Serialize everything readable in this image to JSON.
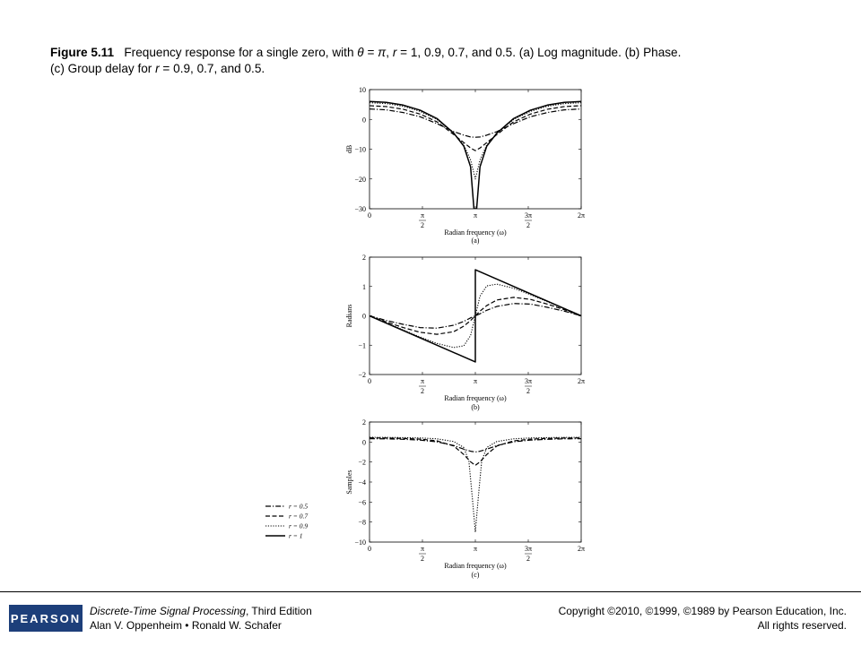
{
  "caption": {
    "figure_label": "Figure 5.11",
    "text_a": "Frequency response for a single zero, with ",
    "theta_sym": "θ",
    "text_b": " = ",
    "pi_sym": "π",
    "text_c": ", ",
    "r_sym": "r",
    "text_d": " = 1, 0.9, 0.7, and 0.5. (a) Log magnitude. (b) Phase.",
    "line2_a": "(c) Group delay for ",
    "line2_r": "r",
    "line2_b": " = 0.9, 0.7, and 0.5."
  },
  "footer": {
    "logo": "PEARSON",
    "book_title": "Discrete-Time Signal Processing",
    "book_edition": ", Third Edition",
    "authors": "Alan V. Oppenheim • Ronald W. Schafer",
    "copyright": "Copyright ©2010, ©1999, ©1989 by Pearson Education, Inc.",
    "rights": "All rights reserved."
  },
  "legend": {
    "entries": [
      {
        "label": "r = 0.5",
        "style": "dashdot"
      },
      {
        "label": "r = 0.7",
        "style": "dashed"
      },
      {
        "label": "r = 0.9",
        "style": "dotted"
      },
      {
        "label": "r = 1",
        "style": "solid"
      }
    ]
  },
  "chart_data": [
    {
      "type": "line",
      "sublabel": "(a)",
      "ylabel": "dB",
      "xlabel": "Radian frequency (ω)",
      "ylim": [
        -30,
        10
      ],
      "yticks": [
        "10",
        "0",
        "−10",
        "−20",
        "−30"
      ],
      "xticks": [
        {
          "num": "0",
          "den": ""
        },
        {
          "num": "π",
          "den": "2"
        },
        {
          "num": "π",
          "den": ""
        },
        {
          "num": "3π",
          "den": "2"
        },
        {
          "num": "2π",
          "den": ""
        }
      ],
      "xlim": [
        0,
        6.2832
      ],
      "series": [
        {
          "r": 1,
          "style": "solid",
          "x": [
            0,
            0.5,
            1.0,
            1.5,
            2.0,
            2.5,
            2.8,
            3.0,
            3.1,
            3.1416,
            3.18,
            3.28,
            3.48,
            3.78,
            4.28,
            4.78,
            5.28,
            5.78,
            6.2832
          ],
          "y": [
            6.0,
            5.7,
            4.8,
            3.1,
            0.3,
            -4.6,
            -9.0,
            -15.9,
            -30,
            -30,
            -30,
            -15.9,
            -9.0,
            -4.6,
            0.3,
            3.1,
            4.8,
            5.7,
            6.0
          ]
        },
        {
          "r": 0.9,
          "style": "dotted",
          "x": [
            0,
            0.5,
            1.0,
            1.5,
            2.0,
            2.5,
            2.8,
            3.0,
            3.1416,
            3.28,
            3.48,
            3.78,
            4.28,
            4.78,
            5.28,
            5.78,
            6.2832
          ],
          "y": [
            5.6,
            5.3,
            4.4,
            2.7,
            0.0,
            -4.6,
            -8.6,
            -13.6,
            -20.0,
            -13.6,
            -8.6,
            -4.6,
            0.0,
            2.7,
            4.4,
            5.3,
            5.6
          ]
        },
        {
          "r": 0.7,
          "style": "dashed",
          "x": [
            0,
            0.5,
            1.0,
            1.5,
            2.0,
            2.5,
            2.8,
            3.0,
            3.1416,
            3.28,
            3.48,
            3.78,
            4.28,
            4.78,
            5.28,
            5.78,
            6.2832
          ],
          "y": [
            4.6,
            4.3,
            3.4,
            1.8,
            -0.8,
            -5.1,
            -7.8,
            -9.6,
            -10.5,
            -9.6,
            -7.8,
            -5.1,
            -0.8,
            1.8,
            3.4,
            4.3,
            4.6
          ]
        },
        {
          "r": 0.5,
          "style": "dashdot",
          "x": [
            0,
            0.5,
            1.0,
            1.5,
            2.0,
            2.5,
            2.8,
            3.0,
            3.1416,
            3.28,
            3.48,
            3.78,
            4.28,
            4.78,
            5.28,
            5.78,
            6.2832
          ],
          "y": [
            3.5,
            3.2,
            2.3,
            0.9,
            -1.4,
            -4.1,
            -5.3,
            -5.9,
            -6.0,
            -5.9,
            -5.3,
            -4.1,
            -1.4,
            0.9,
            2.3,
            3.2,
            3.5
          ]
        }
      ]
    },
    {
      "type": "line",
      "sublabel": "(b)",
      "ylabel": "Radians",
      "xlabel": "Radian frequency (ω)",
      "ylim": [
        -2,
        2
      ],
      "yticks": [
        "2",
        "1",
        "0",
        "−1",
        "−2"
      ],
      "xticks": [
        {
          "num": "0",
          "den": ""
        },
        {
          "num": "π",
          "den": "2"
        },
        {
          "num": "π",
          "den": ""
        },
        {
          "num": "3π",
          "den": "2"
        },
        {
          "num": "2π",
          "den": ""
        }
      ],
      "xlim": [
        0,
        6.2832
      ],
      "series": [
        {
          "r": 1,
          "style": "solid",
          "x": [
            0,
            3.1416,
            3.1416,
            3.1416,
            6.2832
          ],
          "y": [
            0,
            -1.5708,
            -1.5708,
            1.5708,
            0
          ]
        },
        {
          "r": 0.9,
          "style": "dotted",
          "x": [
            0,
            0.5,
            1.0,
            1.5,
            2.0,
            2.5,
            2.8,
            3.0,
            3.1416,
            3.28,
            3.48,
            3.78,
            4.28,
            4.78,
            5.28,
            5.78,
            6.2832
          ],
          "y": [
            0,
            -0.24,
            -0.48,
            -0.72,
            -0.94,
            -1.08,
            -1.02,
            -0.67,
            0,
            0.67,
            1.02,
            1.08,
            0.94,
            0.72,
            0.48,
            0.24,
            0
          ]
        },
        {
          "r": 0.7,
          "style": "dashed",
          "x": [
            0,
            0.5,
            1.0,
            1.5,
            2.0,
            2.5,
            2.8,
            3.0,
            3.1416,
            3.28,
            3.48,
            3.78,
            4.28,
            4.78,
            5.28,
            5.78,
            6.2832
          ],
          "y": [
            0,
            -0.21,
            -0.4,
            -0.56,
            -0.63,
            -0.54,
            -0.35,
            -0.16,
            0,
            0.16,
            0.35,
            0.54,
            0.63,
            0.56,
            0.4,
            0.21,
            0
          ]
        },
        {
          "r": 0.5,
          "style": "dashdot",
          "x": [
            0,
            0.5,
            1.0,
            1.5,
            2.0,
            2.5,
            2.8,
            3.0,
            3.1416,
            3.28,
            3.48,
            3.78,
            4.28,
            4.78,
            5.28,
            5.78,
            6.2832
          ],
          "y": [
            0,
            -0.16,
            -0.29,
            -0.4,
            -0.42,
            -0.32,
            -0.19,
            -0.07,
            0,
            0.07,
            0.19,
            0.32,
            0.42,
            0.4,
            0.29,
            0.16,
            0
          ]
        }
      ]
    },
    {
      "type": "line",
      "sublabel": "(c)",
      "ylabel": "Samples",
      "xlabel": "Radian frequency (ω)",
      "ylim": [
        -10,
        2
      ],
      "yticks": [
        "2",
        "0",
        "−2",
        "−4",
        "−6",
        "−8",
        "−10"
      ],
      "xticks": [
        {
          "num": "0",
          "den": ""
        },
        {
          "num": "π",
          "den": "2"
        },
        {
          "num": "π",
          "den": ""
        },
        {
          "num": "3π",
          "den": "2"
        },
        {
          "num": "2π",
          "den": ""
        }
      ],
      "xlim": [
        0,
        6.2832
      ],
      "series": [
        {
          "r": 0.9,
          "style": "dotted",
          "x": [
            0,
            0.5,
            1.0,
            1.5,
            2.0,
            2.5,
            2.8,
            2.95,
            3.05,
            3.1416,
            3.23,
            3.33,
            3.48,
            3.78,
            4.28,
            4.78,
            5.28,
            5.78,
            6.2832
          ],
          "y": [
            0.47,
            0.46,
            0.44,
            0.41,
            0.32,
            0.05,
            -0.55,
            -1.9,
            -5.5,
            -9.0,
            -5.5,
            -1.9,
            -0.55,
            0.05,
            0.32,
            0.41,
            0.44,
            0.46,
            0.47
          ]
        },
        {
          "r": 0.7,
          "style": "dashed",
          "x": [
            0,
            0.5,
            1.0,
            1.5,
            2.0,
            2.5,
            2.8,
            3.0,
            3.1416,
            3.28,
            3.48,
            3.78,
            4.28,
            4.78,
            5.28,
            5.78,
            6.2832
          ],
          "y": [
            0.41,
            0.4,
            0.36,
            0.29,
            0.12,
            -0.4,
            -1.25,
            -1.98,
            -2.33,
            -1.98,
            -1.25,
            -0.4,
            0.12,
            0.29,
            0.36,
            0.4,
            0.41
          ]
        },
        {
          "r": 0.5,
          "style": "dashdot",
          "x": [
            0,
            0.5,
            1.0,
            1.5,
            2.0,
            2.5,
            2.8,
            3.0,
            3.1416,
            3.28,
            3.48,
            3.78,
            4.28,
            4.78,
            5.28,
            5.78,
            6.2832
          ],
          "y": [
            0.33,
            0.32,
            0.27,
            0.19,
            0.02,
            -0.35,
            -0.72,
            -0.92,
            -1.0,
            -0.92,
            -0.72,
            -0.35,
            0.02,
            0.19,
            0.27,
            0.32,
            0.33
          ]
        }
      ]
    }
  ]
}
